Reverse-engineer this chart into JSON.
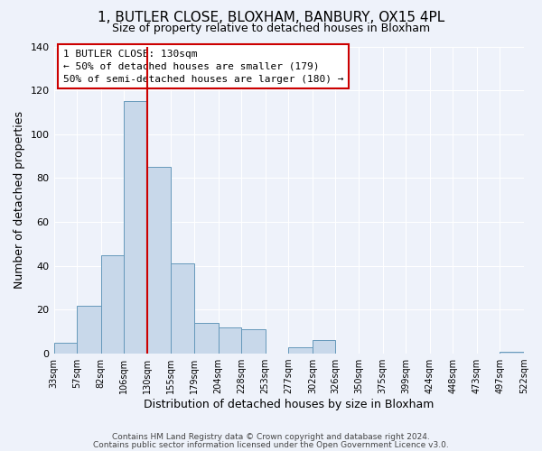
{
  "title": "1, BUTLER CLOSE, BLOXHAM, BANBURY, OX15 4PL",
  "subtitle": "Size of property relative to detached houses in Bloxham",
  "xlabel": "Distribution of detached houses by size in Bloxham",
  "ylabel": "Number of detached properties",
  "bar_color": "#c8d8ea",
  "bar_edge_color": "#6699bb",
  "bg_color": "#eef2fa",
  "grid_color": "#ffffff",
  "annotation_box_color": "#ffffff",
  "annotation_border_color": "#cc0000",
  "vline_color": "#cc0000",
  "vline_x": 130,
  "annotation_text": "1 BUTLER CLOSE: 130sqm\n← 50% of detached houses are smaller (179)\n50% of semi-detached houses are larger (180) →",
  "bin_edges": [
    33,
    57,
    82,
    106,
    130,
    155,
    179,
    204,
    228,
    253,
    277,
    302,
    326,
    350,
    375,
    399,
    424,
    448,
    473,
    497,
    522
  ],
  "bin_heights": [
    5,
    22,
    45,
    115,
    85,
    41,
    14,
    12,
    11,
    0,
    3,
    6,
    0,
    0,
    0,
    0,
    0,
    0,
    0,
    1
  ],
  "ylim": [
    0,
    140
  ],
  "yticks": [
    0,
    20,
    40,
    60,
    80,
    100,
    120,
    140
  ],
  "tick_labels": [
    "33sqm",
    "57sqm",
    "82sqm",
    "106sqm",
    "130sqm",
    "155sqm",
    "179sqm",
    "204sqm",
    "228sqm",
    "253sqm",
    "277sqm",
    "302sqm",
    "326sqm",
    "350sqm",
    "375sqm",
    "399sqm",
    "424sqm",
    "448sqm",
    "473sqm",
    "497sqm",
    "522sqm"
  ],
  "footer1": "Contains HM Land Registry data © Crown copyright and database right 2024.",
  "footer2": "Contains public sector information licensed under the Open Government Licence v3.0."
}
